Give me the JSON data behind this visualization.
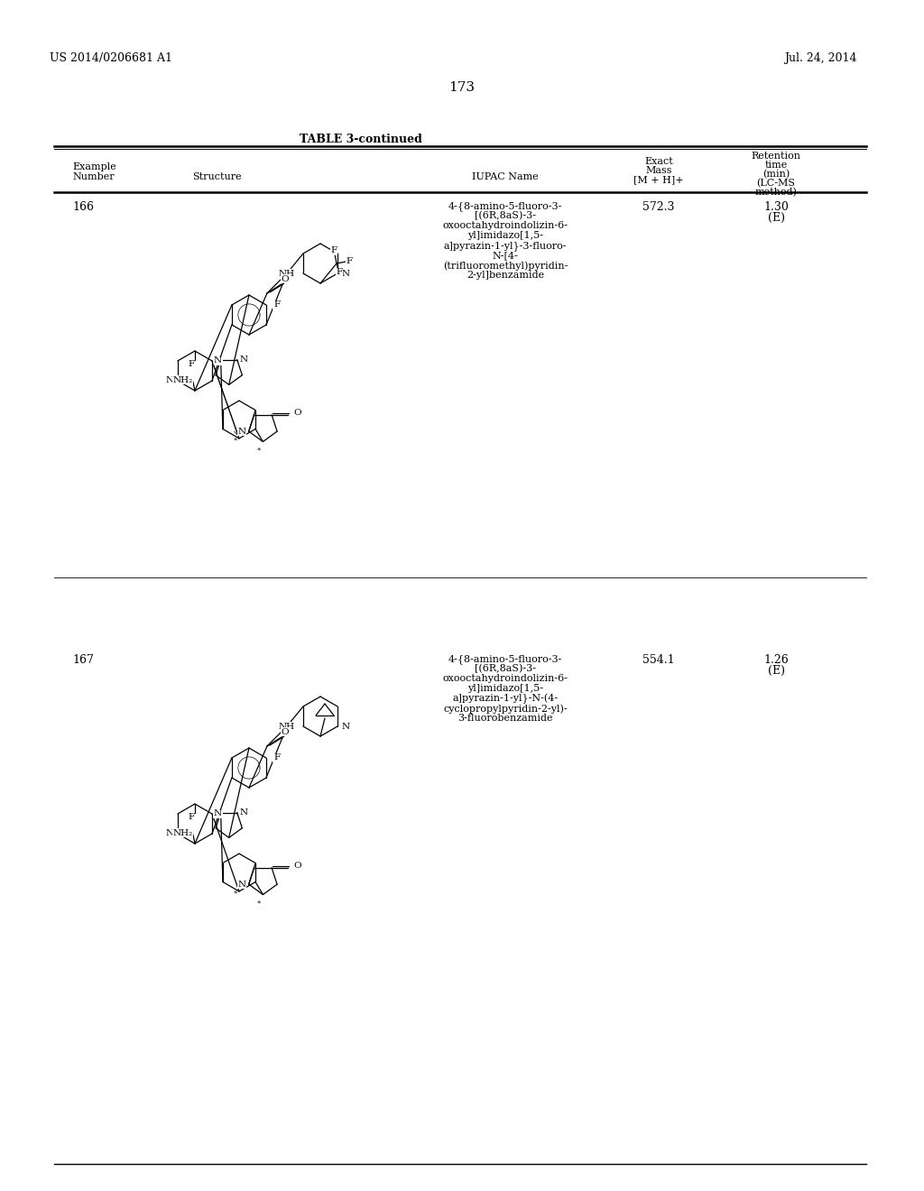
{
  "page_number": "173",
  "patent_number": "US 2014/0206681 A1",
  "patent_date": "Jul. 24, 2014",
  "table_title": "TABLE 3-continued",
  "background_color": "#ffffff",
  "text_color": "#000000",
  "rows": [
    {
      "example_number": "166",
      "iupac_lines": [
        "4-{8-amino-5-fluoro-3-",
        "[(6R,8aS)-3-",
        "oxooctahydroindolizin-6-",
        "yl]imidazo[1,5-",
        "a]pyrazin-1-yl}-3-fluoro-",
        "N-[4-",
        "(trifluoromethyl)pyridin-",
        "2-yl]benzamide"
      ],
      "exact_mass": "572.3",
      "retention_time": "1.30",
      "retention_note": "(E)"
    },
    {
      "example_number": "167",
      "iupac_lines": [
        "4-{8-amino-5-fluoro-3-",
        "[(6R,8aS)-3-",
        "oxooctahydroindolizin-6-",
        "yl]imidazo[1,5-",
        "a]pyrazin-1-yl}-N-(4-",
        "cyclopropylpyridin-2-yl)-",
        "3-fluorobenzamide"
      ],
      "exact_mass": "554.1",
      "retention_time": "1.26",
      "retention_note": "(E)"
    }
  ]
}
